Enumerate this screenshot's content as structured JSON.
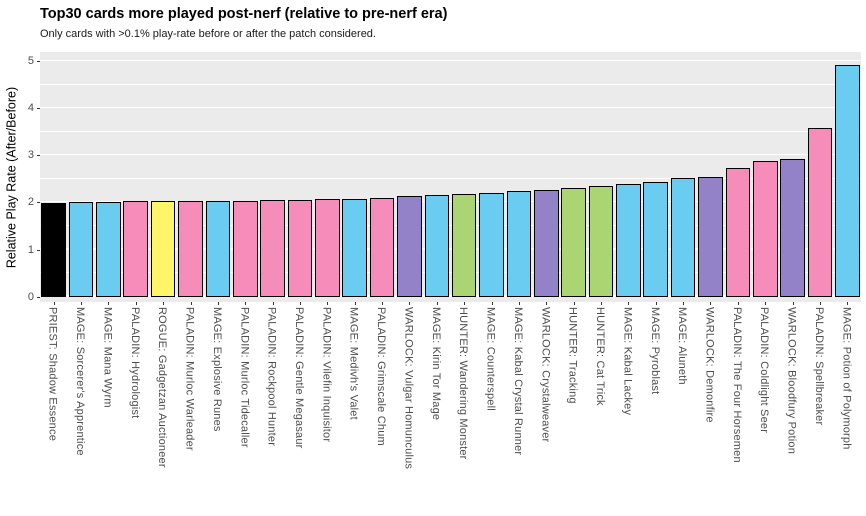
{
  "title": "Top30 cards more played post-nerf (relative to pre-nerf era)",
  "subtitle": "Only cards with >0.1% play-rate before or after the patch considered.",
  "chart_data": {
    "type": "bar",
    "title": "Top30 cards more played post-nerf (relative to pre-nerf era)",
    "subtitle": "Only cards with >0.1% play-rate before or after the patch considered.",
    "xlabel": "",
    "ylabel": "Relative Play Rate (After/Before)",
    "ylim": [
      0,
      5
    ],
    "yticks": [
      0,
      1,
      2,
      3,
      4,
      5
    ],
    "grid": true,
    "legend": "none",
    "panel_background": "#EBEBEB",
    "gridline_color": "#FFFFFF",
    "bar_outline_color": "#000000",
    "axis_text_color": "#4D4D4D",
    "categories": [
      "PRIEST: Shadow Essence",
      "MAGE: Sorcerer's Apprentice",
      "MAGE: Mana Wyrm",
      "PALADIN: Hydrologist",
      "ROGUE: Gadgetzan Auctioneer",
      "PALADIN: Murloc Warleader",
      "MAGE: Explosive Runes",
      "PALADIN: Murloc Tidecaller",
      "PALADIN: Rockpool Hunter",
      "PALADIN: Gentle Megasaur",
      "PALADIN: Vilefin Inquisitor",
      "MAGE: Medivh's Valet",
      "PALADIN: Grimscale Chum",
      "WARLOCK: Vulgar Homunculus",
      "MAGE: Kirin Tor Mage",
      "HUNTER: Wandering Monster",
      "MAGE: Counterspell",
      "MAGE: Kabal Crystal Runner",
      "WARLOCK: Crystalweaver",
      "HUNTER: Tracking",
      "HUNTER: Cat Trick",
      "MAGE: Kabal Lackey",
      "MAGE: Pyroblast",
      "MAGE: Aluneth",
      "WARLOCK: Demonfire",
      "PALADIN: The Four Horsemen",
      "PALADIN: Coldlight Seer",
      "WARLOCK: Bloodfury Potion",
      "PALADIN: Spellbreaker",
      "MAGE: Potion of Polymorph"
    ],
    "values": [
      1.98,
      2.0,
      2.01,
      2.02,
      2.03,
      2.03,
      2.04,
      2.04,
      2.05,
      2.06,
      2.07,
      2.08,
      2.1,
      2.14,
      2.16,
      2.18,
      2.21,
      2.24,
      2.27,
      2.31,
      2.34,
      2.4,
      2.43,
      2.52,
      2.55,
      2.72,
      2.88,
      2.93,
      3.57,
      4.92
    ],
    "class_colors": {
      "PRIEST": "#000000",
      "MAGE": "#69CCF0",
      "PALADIN": "#F58CBA",
      "ROGUE": "#FFF569",
      "WARLOCK": "#9482C9",
      "HUNTER": "#ABD473"
    }
  }
}
